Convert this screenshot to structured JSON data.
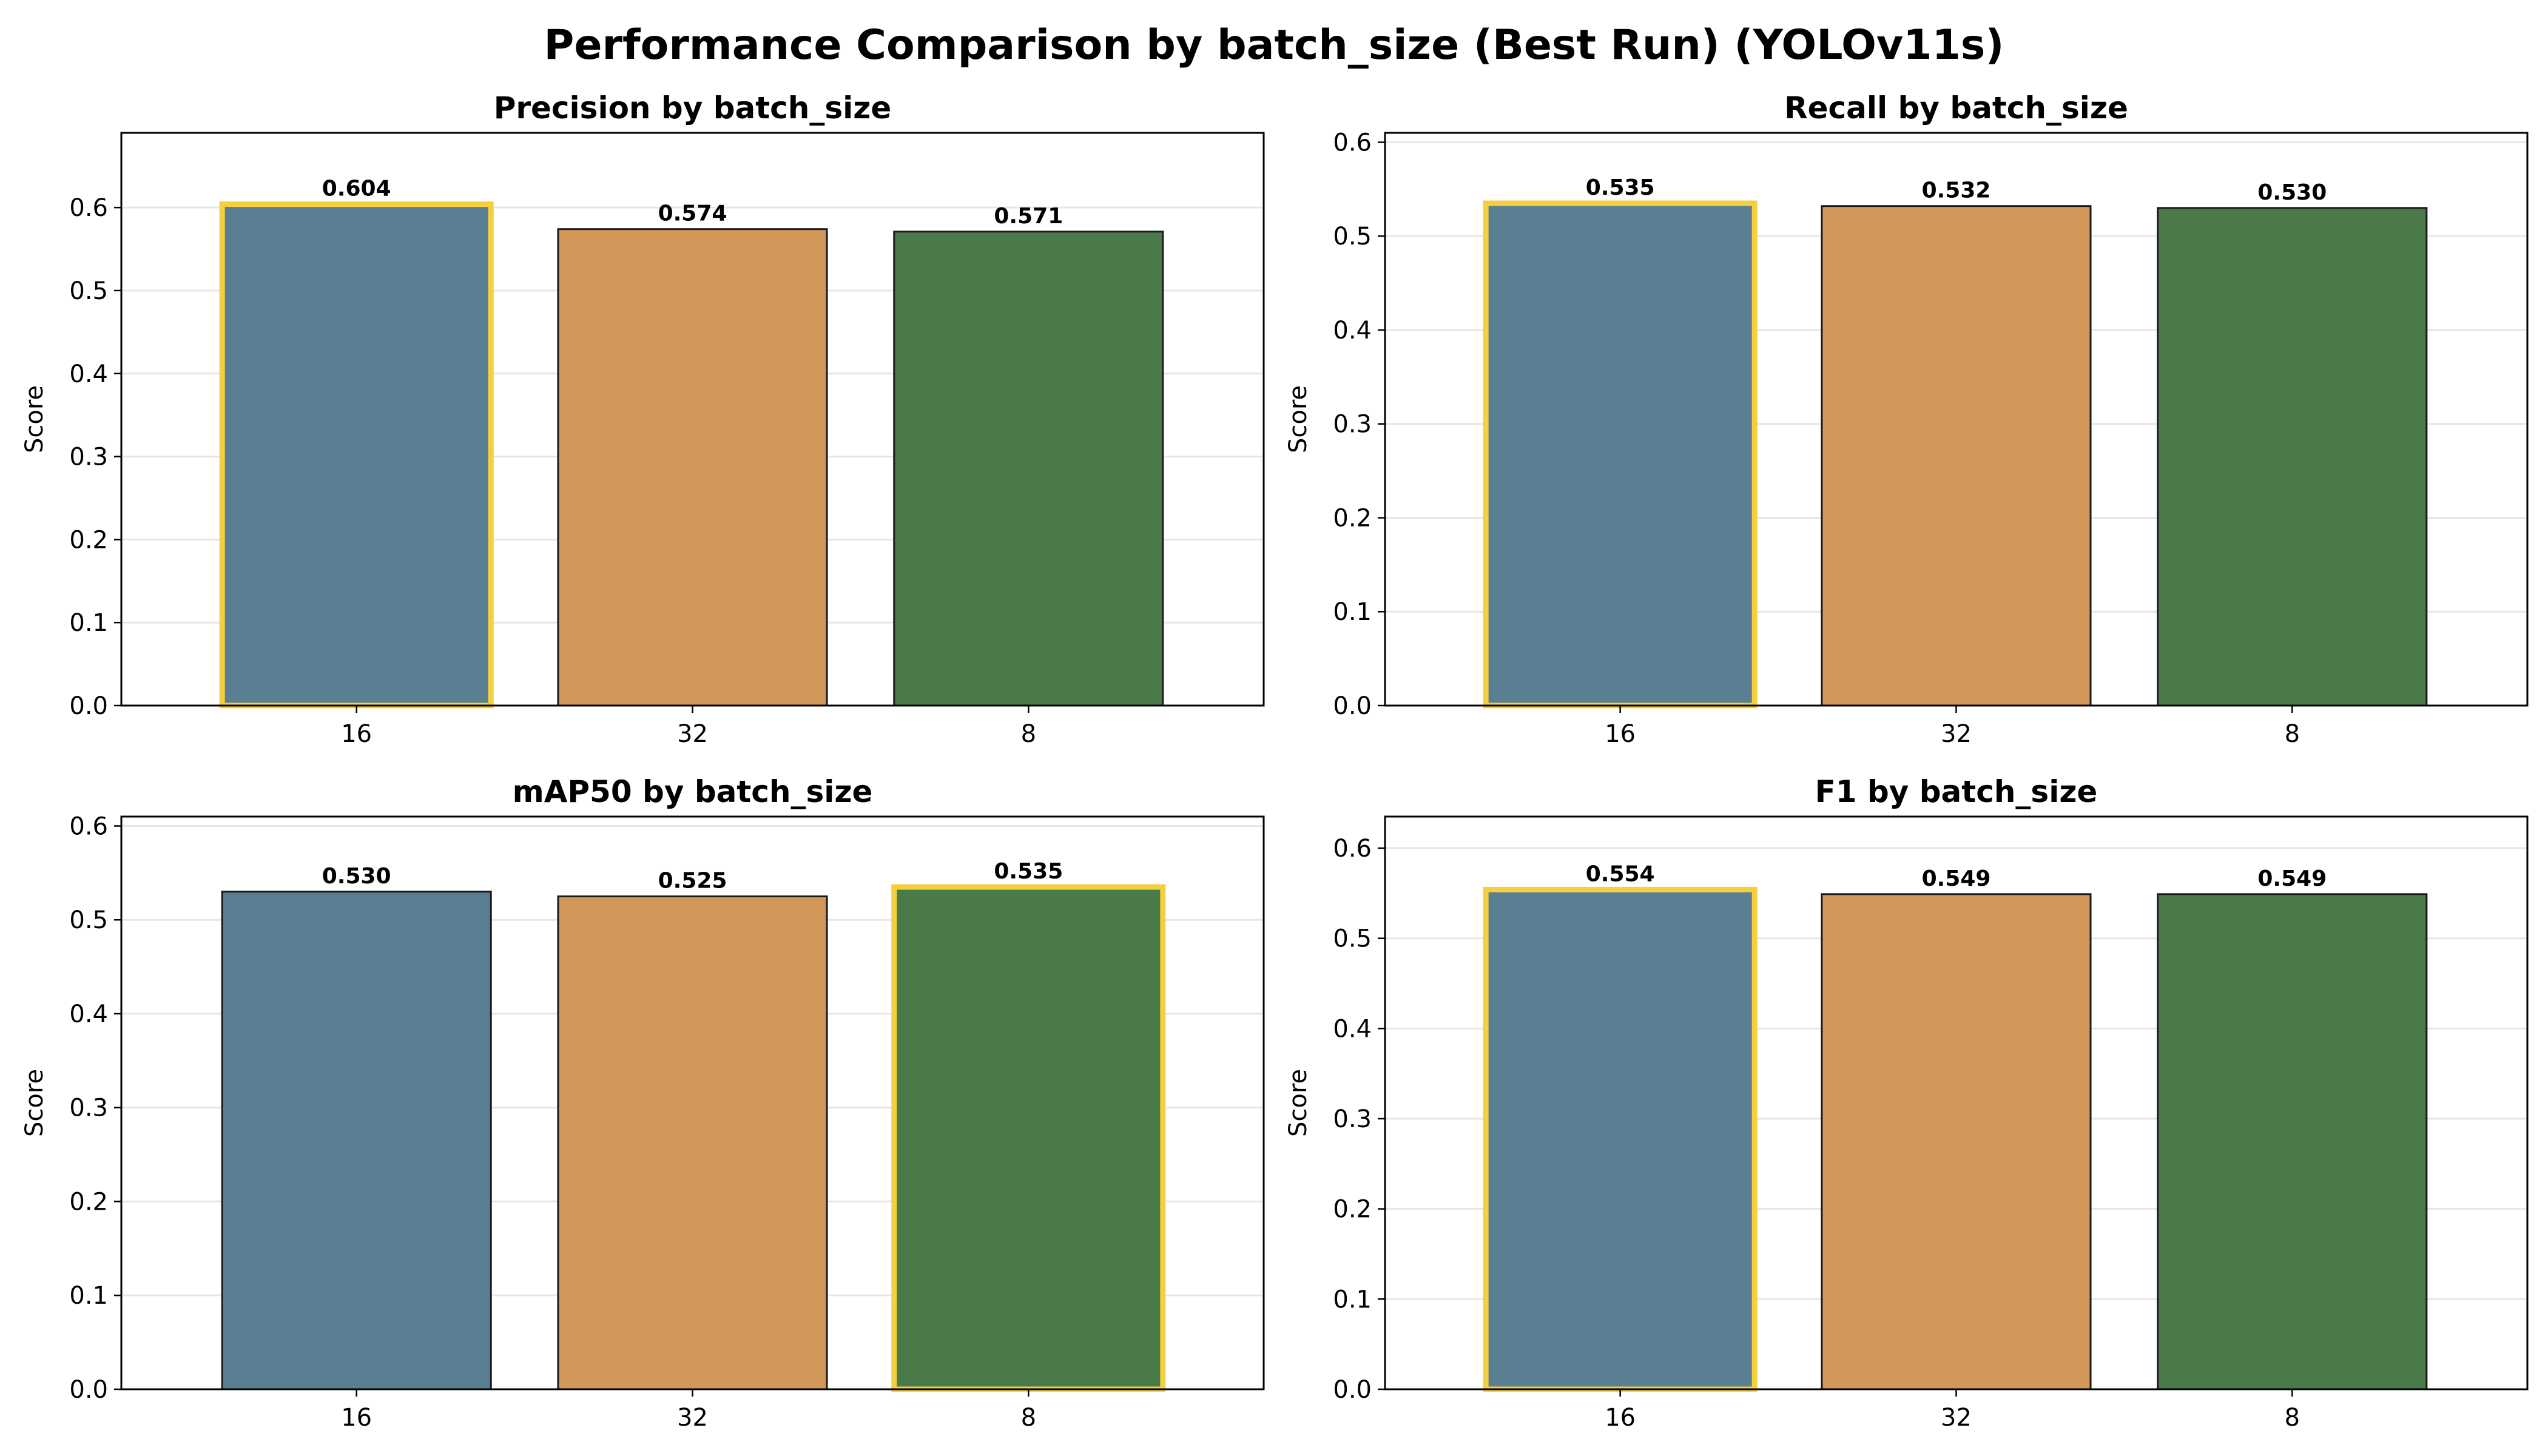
{
  "figure_title": "Performance Comparison by batch_size (Best Run) (YOLOv11s)",
  "colors": {
    "bar_colors": [
      "#5a7f93",
      "#d3975a",
      "#4a7a49"
    ],
    "best_outline": "#f4d03f",
    "bar_edge": "#1a1a1a",
    "grid": "#e6e6e6"
  },
  "chart_data": [
    {
      "type": "bar",
      "title": "Precision by batch_size",
      "xlabel": "",
      "ylabel": "Score",
      "categories": [
        "16",
        "32",
        "8"
      ],
      "values": [
        0.604,
        0.574,
        0.571
      ],
      "value_labels": [
        "0.604",
        "0.574",
        "0.571"
      ],
      "best_index": 0,
      "ylim": [
        0,
        0.69
      ],
      "yticks": [
        0.0,
        0.1,
        0.2,
        0.3,
        0.4,
        0.5,
        0.6
      ],
      "ytick_labels": [
        "0.0",
        "0.1",
        "0.2",
        "0.3",
        "0.4",
        "0.5",
        "0.6"
      ],
      "grid": true
    },
    {
      "type": "bar",
      "title": "Recall by batch_size",
      "xlabel": "",
      "ylabel": "Score",
      "categories": [
        "16",
        "32",
        "8"
      ],
      "values": [
        0.535,
        0.532,
        0.53
      ],
      "value_labels": [
        "0.535",
        "0.532",
        "0.530"
      ],
      "best_index": 0,
      "ylim": [
        0,
        0.61
      ],
      "yticks": [
        0.0,
        0.1,
        0.2,
        0.3,
        0.4,
        0.5,
        0.6
      ],
      "ytick_labels": [
        "0.0",
        "0.1",
        "0.2",
        "0.3",
        "0.4",
        "0.5",
        "0.6"
      ],
      "grid": true
    },
    {
      "type": "bar",
      "title": "mAP50 by batch_size",
      "xlabel": "",
      "ylabel": "Score",
      "categories": [
        "16",
        "32",
        "8"
      ],
      "values": [
        0.53,
        0.525,
        0.535
      ],
      "value_labels": [
        "0.530",
        "0.525",
        "0.535"
      ],
      "best_index": 2,
      "ylim": [
        0,
        0.61
      ],
      "yticks": [
        0.0,
        0.1,
        0.2,
        0.3,
        0.4,
        0.5,
        0.6
      ],
      "ytick_labels": [
        "0.0",
        "0.1",
        "0.2",
        "0.3",
        "0.4",
        "0.5",
        "0.6"
      ],
      "grid": true
    },
    {
      "type": "bar",
      "title": "F1 by batch_size",
      "xlabel": "",
      "ylabel": "Score",
      "categories": [
        "16",
        "32",
        "8"
      ],
      "values": [
        0.554,
        0.549,
        0.549
      ],
      "value_labels": [
        "0.554",
        "0.549",
        "0.549"
      ],
      "best_index": 0,
      "ylim": [
        0,
        0.635
      ],
      "yticks": [
        0.0,
        0.1,
        0.2,
        0.3,
        0.4,
        0.5,
        0.6
      ],
      "ytick_labels": [
        "0.0",
        "0.1",
        "0.2",
        "0.3",
        "0.4",
        "0.5",
        "0.6"
      ],
      "grid": true
    }
  ]
}
